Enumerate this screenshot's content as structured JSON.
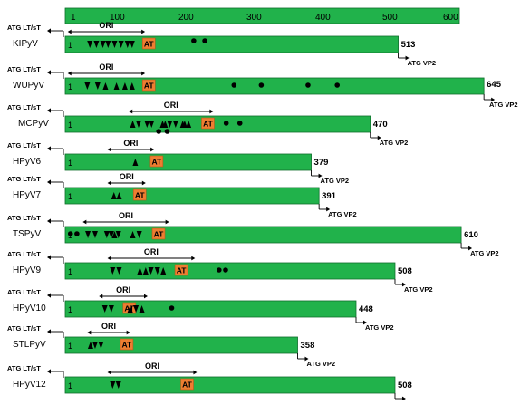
{
  "colors": {
    "bar": "#21b24b",
    "bar_stroke": "#0f6e2c",
    "at_box": "#ee7d31",
    "ink": "#000000",
    "background": "#ffffff"
  },
  "scale": {
    "ticks": [
      "1",
      "100",
      "200",
      "300",
      "400",
      "500",
      "600"
    ]
  },
  "labels": {
    "atg_lt": "ATG LT/sT",
    "atg_vp2": "ATG VP2",
    "ori": "ORI",
    "at": "AT",
    "start": "1"
  },
  "viruses": [
    {
      "name": "KIPyV",
      "end": "513",
      "len": 513,
      "ori": [
        1,
        123
      ],
      "at": 119,
      "marks": [
        [
          "t",
          38
        ],
        [
          "t",
          48
        ],
        [
          "t",
          58
        ],
        [
          "t",
          66
        ],
        [
          "t",
          76
        ],
        [
          "t",
          86
        ],
        [
          "t",
          96
        ],
        [
          "t",
          103
        ],
        [
          "c",
          198
        ],
        [
          "c",
          215
        ]
      ]
    },
    {
      "name": "WUPyV",
      "end": "645",
      "len": 645,
      "ori": [
        1,
        123
      ],
      "at": 119,
      "marks": [
        [
          "t",
          34
        ],
        [
          "t",
          50
        ],
        [
          "u",
          62
        ],
        [
          "u",
          79
        ],
        [
          "u",
          92
        ],
        [
          "u",
          103
        ],
        [
          "c",
          260
        ],
        [
          "c",
          302
        ],
        [
          "c",
          374
        ],
        [
          "c",
          419
        ]
      ]
    },
    {
      "name": "MCPyV",
      "end": "470",
      "len": 470,
      "ori": [
        98,
        228
      ],
      "at": 210,
      "marks": [
        [
          "u",
          104
        ],
        [
          "t",
          113
        ],
        [
          "t",
          126
        ],
        [
          "t",
          133
        ],
        [
          "u",
          150
        ],
        [
          "u",
          154
        ],
        [
          "t",
          161
        ],
        [
          "t",
          170
        ],
        [
          "u",
          181
        ],
        [
          "u",
          184
        ],
        [
          "u",
          190
        ],
        [
          "c",
          144,
          1
        ],
        [
          "c",
          157,
          1
        ],
        [
          "c",
          248
        ],
        [
          "c",
          269
        ]
      ]
    },
    {
      "name": "HPyV6",
      "end": "379",
      "len": 379,
      "ori": [
        65,
        137
      ],
      "at": 131,
      "marks": [
        [
          "u",
          108
        ]
      ]
    },
    {
      "name": "HPyV7",
      "end": "391",
      "len": 391,
      "ori": [
        65,
        124
      ],
      "at": 105,
      "marks": [
        [
          "u",
          75
        ],
        [
          "u",
          83
        ]
      ]
    },
    {
      "name": "TSPyV",
      "end": "610",
      "len": 610,
      "ori": [
        27,
        160
      ],
      "at": 134,
      "marks": [
        [
          "c",
          8
        ],
        [
          "c",
          18
        ],
        [
          "t",
          35
        ],
        [
          "t",
          46
        ],
        [
          "t",
          64
        ],
        [
          "t",
          71
        ],
        [
          "u",
          76
        ],
        [
          "t",
          82
        ],
        [
          "u",
          104
        ],
        [
          "t",
          114
        ]
      ]
    },
    {
      "name": "HPyV9",
      "end": "508",
      "len": 508,
      "ori": [
        65,
        200
      ],
      "at": 169,
      "marks": [
        [
          "t",
          73
        ],
        [
          "t",
          83
        ],
        [
          "u",
          115
        ],
        [
          "u",
          124
        ],
        [
          "t",
          132
        ],
        [
          "t",
          142
        ],
        [
          "u",
          151
        ],
        [
          "c",
          237
        ],
        [
          "c",
          247
        ]
      ]
    },
    {
      "name": "HPyV10",
      "end": "448",
      "len": 448,
      "ori": [
        52,
        127
      ],
      "at": 89,
      "marks": [
        [
          "t",
          61
        ],
        [
          "t",
          71
        ],
        [
          "u",
          100
        ],
        [
          "t",
          109
        ],
        [
          "u",
          118
        ],
        [
          "c",
          164
        ]
      ]
    },
    {
      "name": "STLPyV",
      "end": "358",
      "len": 358,
      "ori": [
        34,
        100
      ],
      "at": 85,
      "marks": [
        [
          "u",
          39
        ],
        [
          "t",
          46
        ],
        [
          "t",
          55
        ]
      ]
    },
    {
      "name": "HPyV12",
      "end": "508",
      "len": 508,
      "ori": [
        65,
        203
      ],
      "at": 178,
      "marks": [
        [
          "t",
          73
        ],
        [
          "t",
          82
        ]
      ]
    }
  ]
}
